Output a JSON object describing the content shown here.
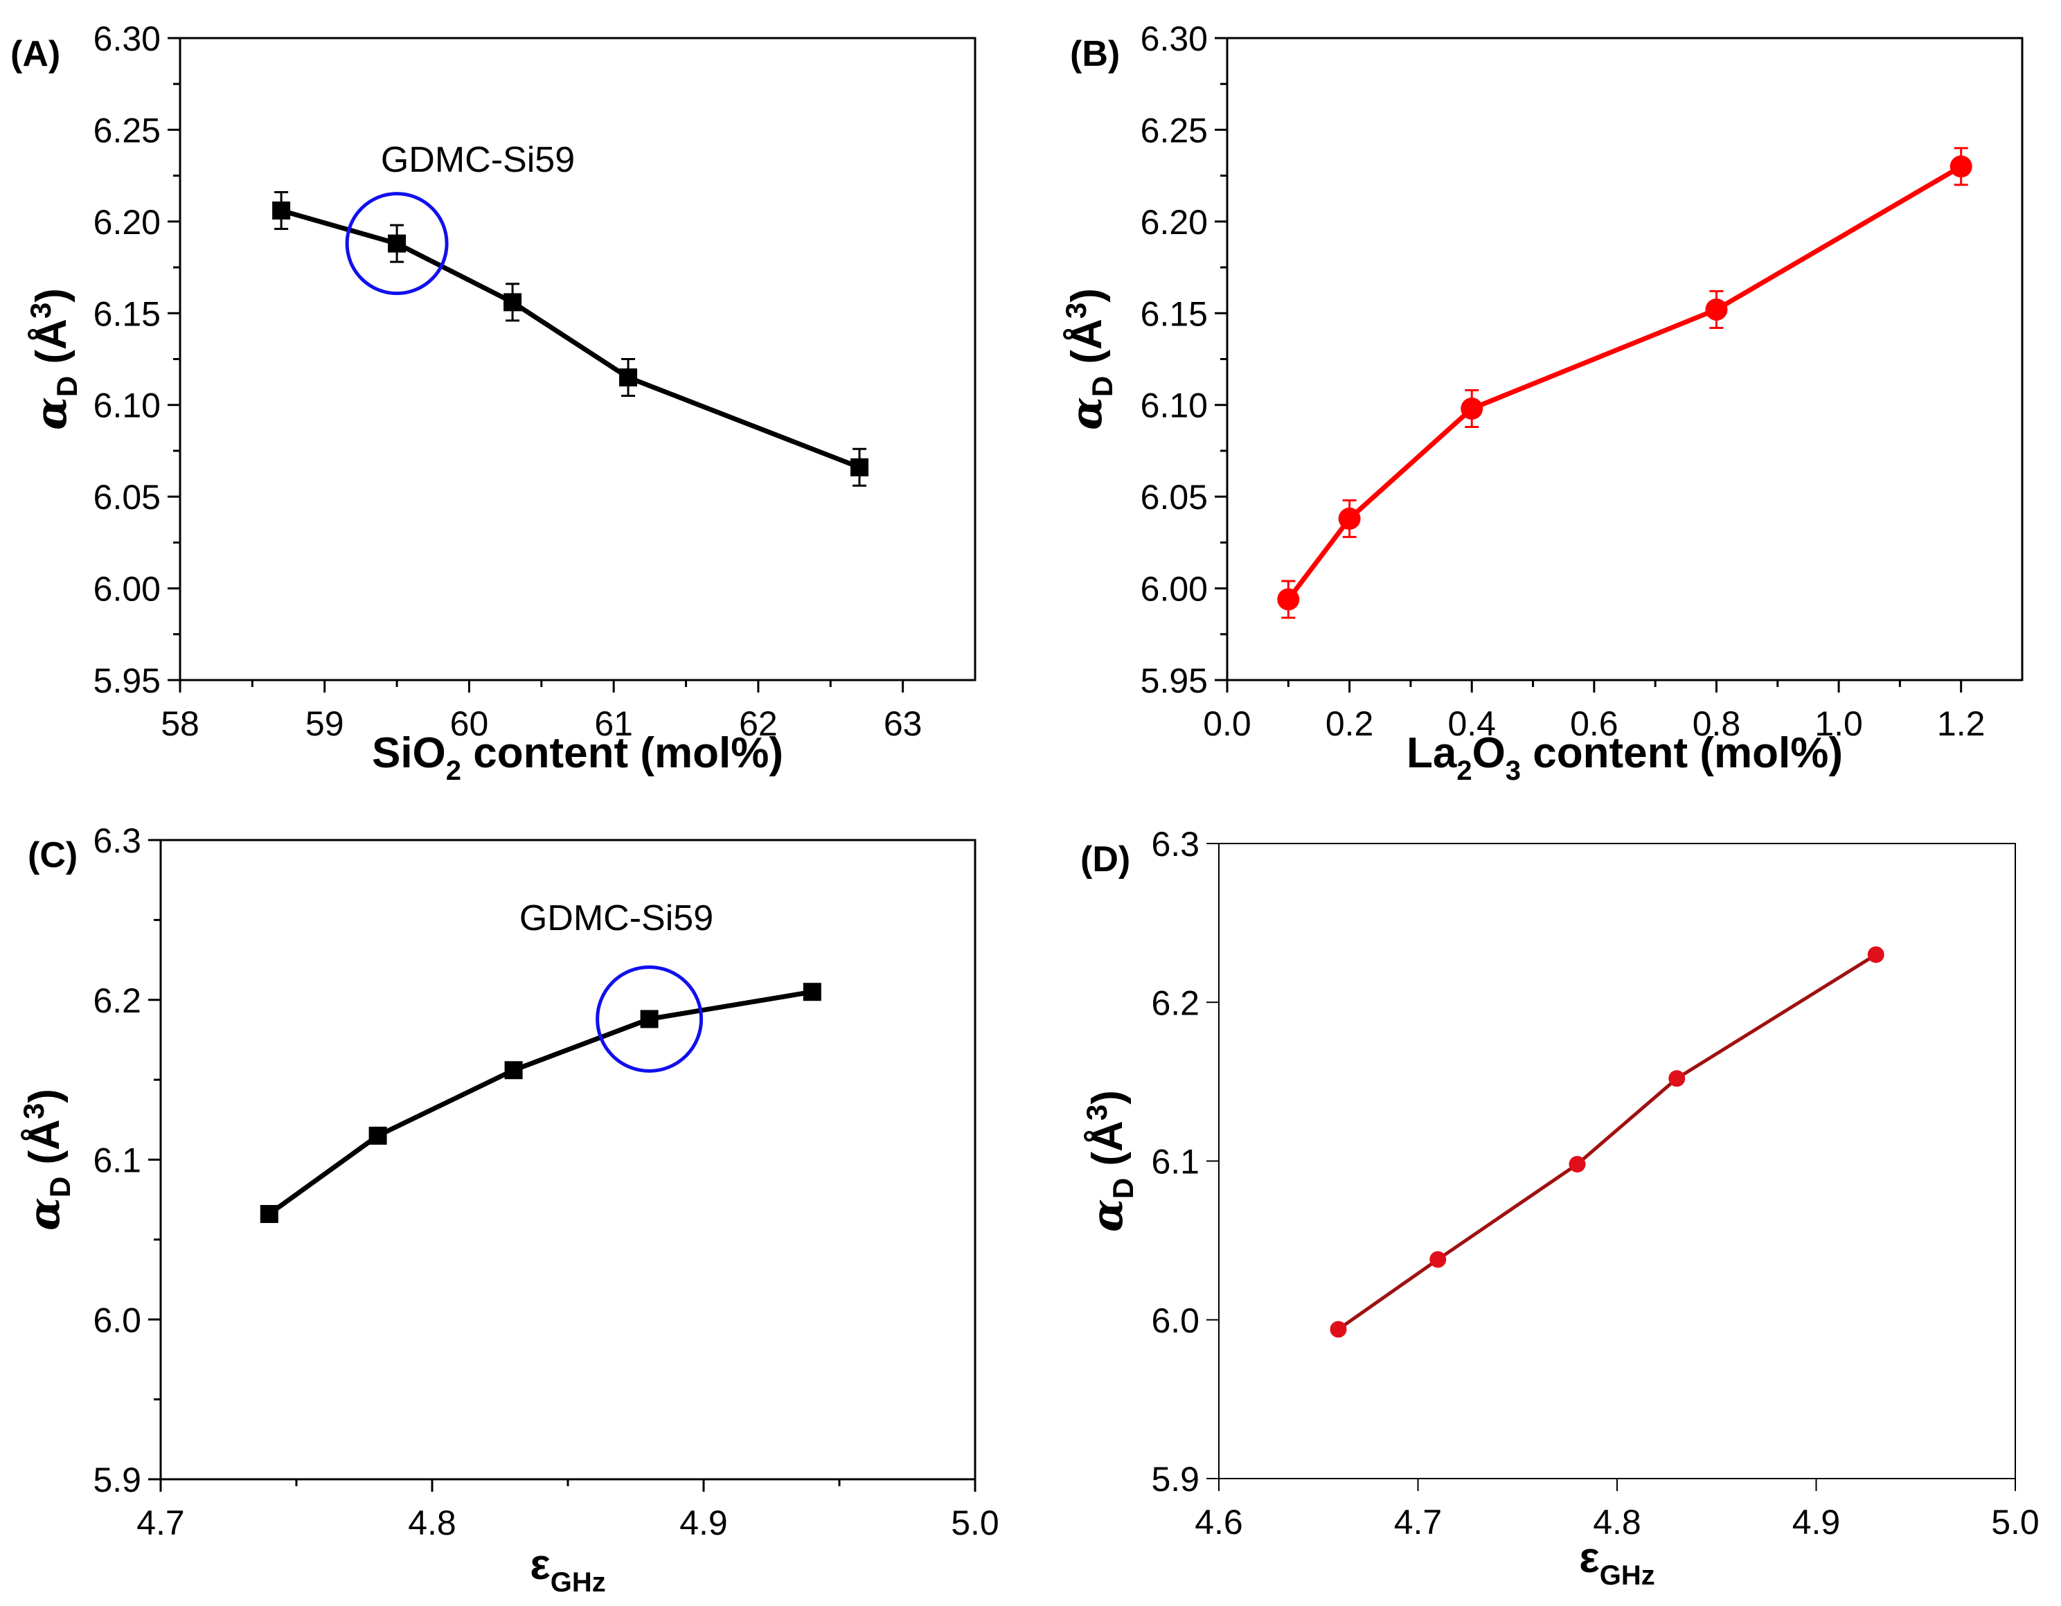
{
  "colors": {
    "black": "#000000",
    "red": "#ff0000",
    "darkred": "#a01010",
    "darkred_marker": "#e0101a",
    "blue": "#1010ee",
    "white": "#ffffff"
  },
  "chart_data": [
    {
      "id": "A",
      "panel_label": "(A)",
      "type": "line",
      "marker": "square",
      "series_color": "black",
      "x": [
        58.7,
        59.5,
        60.3,
        61.1,
        62.7
      ],
      "y": [
        6.206,
        6.188,
        6.156,
        6.115,
        6.066
      ],
      "yerr": [
        0.01,
        0.01,
        0.01,
        0.01,
        0.01
      ],
      "xlim": [
        58,
        63.5
      ],
      "ylim": [
        5.95,
        6.3
      ],
      "xticks": [
        "58",
        "59",
        "60",
        "61",
        "62",
        "63"
      ],
      "xtick_values": [
        58,
        59,
        60,
        61,
        62,
        63
      ],
      "yticks": [
        "5.95",
        "6.00",
        "6.05",
        "6.10",
        "6.15",
        "6.20",
        "6.25",
        "6.30"
      ],
      "ytick_values": [
        5.95,
        6.0,
        6.05,
        6.1,
        6.15,
        6.2,
        6.25,
        6.3
      ],
      "xlabel": {
        "main": "SiO",
        "sub": "2",
        "rest": " content (mol%)"
      },
      "ylabel": {
        "sym": "α",
        "sub": "D",
        "open": " (Å",
        "sup": "3",
        "close": ")"
      },
      "annotation": {
        "text": "GDMC-Si59",
        "x": 59.5,
        "y": 6.188
      }
    },
    {
      "id": "B",
      "panel_label": "(B)",
      "type": "line",
      "marker": "circle",
      "series_color": "red",
      "x": [
        0.1,
        0.2,
        0.4,
        0.8,
        1.2
      ],
      "y": [
        5.994,
        6.038,
        6.098,
        6.152,
        6.23
      ],
      "yerr": [
        0.01,
        0.01,
        0.01,
        0.01,
        0.01
      ],
      "xlim": [
        0.0,
        1.3
      ],
      "ylim": [
        5.95,
        6.3
      ],
      "xticks": [
        "0.0",
        "0.2",
        "0.4",
        "0.6",
        "0.8",
        "1.0",
        "1.2"
      ],
      "xtick_values": [
        0.0,
        0.2,
        0.4,
        0.6,
        0.8,
        1.0,
        1.2
      ],
      "yticks": [
        "5.95",
        "6.00",
        "6.05",
        "6.10",
        "6.15",
        "6.20",
        "6.25",
        "6.30"
      ],
      "ytick_values": [
        5.95,
        6.0,
        6.05,
        6.1,
        6.15,
        6.2,
        6.25,
        6.3
      ],
      "xlabel": {
        "main": "La",
        "sub": "2",
        "mid": "O",
        "sub2": "3",
        "rest": " content (mol%)"
      },
      "ylabel": {
        "sym": "α",
        "sub": "D",
        "open": " (Å",
        "sup": "3",
        "close": ")"
      }
    },
    {
      "id": "C",
      "panel_label": "(C)",
      "type": "line",
      "marker": "square",
      "series_color": "black",
      "x": [
        4.74,
        4.78,
        4.83,
        4.88,
        4.94
      ],
      "y": [
        6.066,
        6.115,
        6.156,
        6.188,
        6.205
      ],
      "xlim": [
        4.7,
        5.0
      ],
      "ylim": [
        5.9,
        6.3
      ],
      "xticks": [
        "4.7",
        "4.8",
        "4.9",
        "5.0"
      ],
      "xtick_values": [
        4.7,
        4.8,
        4.9,
        5.0
      ],
      "yticks": [
        "5.9",
        "6.0",
        "6.1",
        "6.2",
        "6.3"
      ],
      "ytick_values": [
        5.9,
        6.0,
        6.1,
        6.2,
        6.3
      ],
      "xlabel": {
        "main": "ε",
        "sub": "GHz"
      },
      "ylabel": {
        "sym": "α",
        "sub": "D",
        "open": " (Å",
        "sup": "3",
        "close": ")"
      },
      "annotation": {
        "text": "GDMC-Si59",
        "x": 4.88,
        "y": 6.188
      }
    },
    {
      "id": "D",
      "panel_label": "(D)",
      "type": "line",
      "marker": "circle",
      "series_color": "darkred",
      "x": [
        4.66,
        4.71,
        4.78,
        4.83,
        4.93
      ],
      "y": [
        5.994,
        6.038,
        6.098,
        6.152,
        6.23
      ],
      "xlim": [
        4.6,
        5.0
      ],
      "ylim": [
        5.9,
        6.3
      ],
      "xticks": [
        "4.6",
        "4.7",
        "4.8",
        "4.9",
        "5.0"
      ],
      "xtick_values": [
        4.6,
        4.7,
        4.8,
        4.9,
        5.0
      ],
      "yticks": [
        "5.9",
        "6.0",
        "6.1",
        "6.2",
        "6.3"
      ],
      "ytick_values": [
        5.9,
        6.0,
        6.1,
        6.2,
        6.3
      ],
      "xlabel": {
        "main": "ε",
        "sub": "GHz"
      },
      "ylabel": {
        "sym": "α",
        "sub": "D",
        "open": " (Å",
        "sup": "3",
        "close": ")"
      }
    }
  ]
}
